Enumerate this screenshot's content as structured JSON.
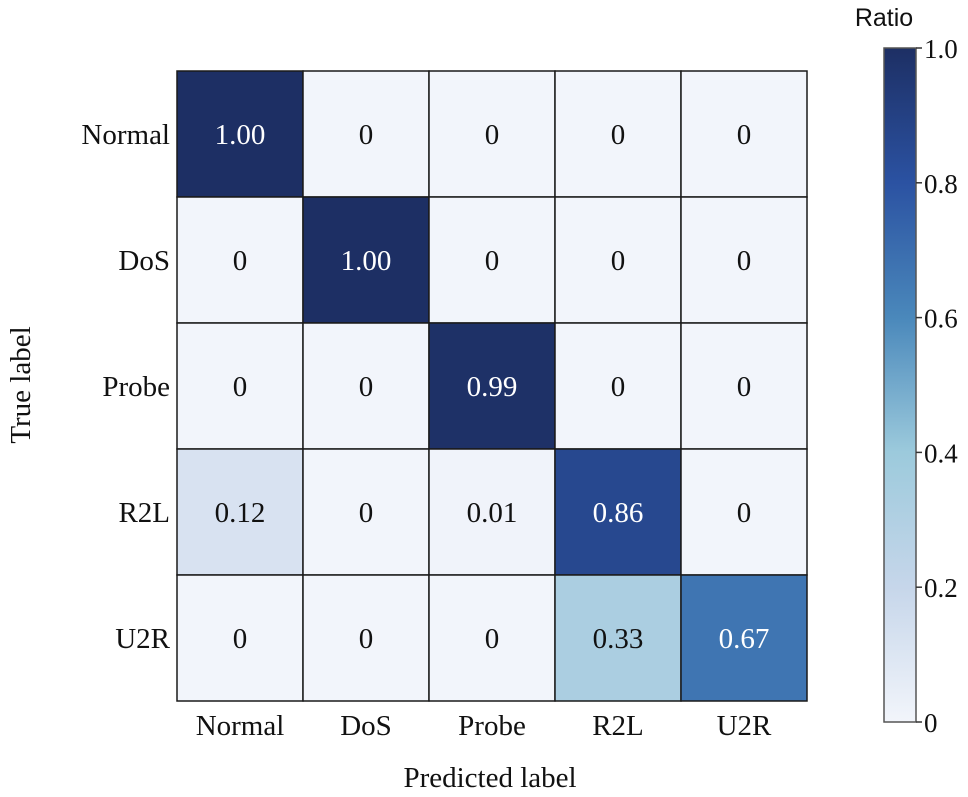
{
  "chart_data": {
    "type": "heatmap",
    "title": "",
    "xlabel": "Predicted label",
    "ylabel": "True label",
    "x_categories": [
      "Normal",
      "DoS",
      "Probe",
      "R2L",
      "U2R"
    ],
    "y_categories": [
      "Normal",
      "DoS",
      "Probe",
      "R2L",
      "U2R"
    ],
    "values": [
      [
        1.0,
        0,
        0,
        0,
        0
      ],
      [
        0,
        1.0,
        0,
        0,
        0
      ],
      [
        0,
        0,
        0.99,
        0,
        0
      ],
      [
        0.12,
        0,
        0.01,
        0.86,
        0
      ],
      [
        0,
        0,
        0,
        0.33,
        0.67
      ]
    ],
    "cell_labels": [
      [
        "1.00",
        "0",
        "0",
        "0",
        "0"
      ],
      [
        "0",
        "1.00",
        "0",
        "0",
        "0"
      ],
      [
        "0",
        "0",
        "0.99",
        "0",
        "0"
      ],
      [
        "0.12",
        "0",
        "0.01",
        "0.86",
        "0"
      ],
      [
        "0",
        "0",
        "0",
        "0.33",
        "0.67"
      ]
    ],
    "colorbar": {
      "label": "Ratio",
      "range": [
        0,
        1
      ],
      "ticks": [
        0,
        0.2,
        0.4,
        0.6,
        0.8,
        1.0
      ],
      "tick_labels": [
        "0",
        "0.2",
        "0.4",
        "0.6",
        "0.8",
        "1.0"
      ],
      "colormap": "Blues",
      "colors": [
        "#f2f5fb",
        "#c6d6ea",
        "#9ccadc",
        "#4a88bb",
        "#2b52a2",
        "#1d2f64"
      ]
    },
    "grid": true,
    "legend": "colorbar-right"
  }
}
